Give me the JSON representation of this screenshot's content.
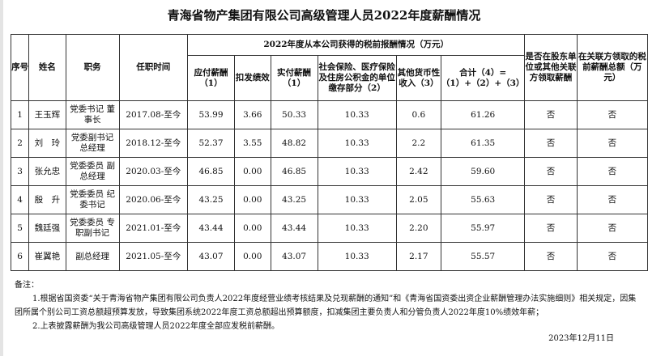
{
  "title": "青海省物产集团有限公司高级管理人员2022年度薪酬情况",
  "headers": {
    "seq": "序号",
    "name": "姓名",
    "position": "职务",
    "tenure": "任职时间",
    "group": "2022年度从本公司获得的税前报酬情况（万元）",
    "payable": "应付薪酬（1）",
    "deduct": "扣发绩效",
    "actual": "实付薪酬（1）",
    "social": "社会保险、医疗保险及住房公积金的单位缴存部分（2）",
    "other": "其他货币性收入（3）",
    "total": "合计（4）=（1）+（2）+（3）",
    "related": "是否在股东单位或其他关联方领取薪酬",
    "related_amount": "在关联方领取的税前薪酬总额（万元）"
  },
  "rows": [
    {
      "seq": "1",
      "name": "王玉辉",
      "position": "党委书记 董事长",
      "tenure": "2017.08-至今",
      "payable": "53.99",
      "deduct": "3.66",
      "actual": "50.33",
      "social": "10.33",
      "other": "0.6",
      "total": "61.26",
      "related": "否",
      "related_amount": "否"
    },
    {
      "seq": "2",
      "name": "刘　玲",
      "position": "党委副书记 总经理",
      "tenure": "2018.12-至今",
      "payable": "52.37",
      "deduct": "3.55",
      "actual": "48.82",
      "social": "10.33",
      "other": "2.2",
      "total": "61.35",
      "related": "否",
      "related_amount": "否"
    },
    {
      "seq": "3",
      "name": "张允忠",
      "position": "党委委员 副总经理",
      "tenure": "2020.03-至今",
      "payable": "46.85",
      "deduct": "0.00",
      "actual": "46.85",
      "social": "10.33",
      "other": "2.42",
      "total": "59.60",
      "related": "否",
      "related_amount": "否"
    },
    {
      "seq": "4",
      "name": "殷　升",
      "position": "党委委员 纪委书记",
      "tenure": "2020.06-至今",
      "payable": "43.25",
      "deduct": "0.00",
      "actual": "43.25",
      "social": "10.33",
      "other": "2.05",
      "total": "55.63",
      "related": "否",
      "related_amount": "否"
    },
    {
      "seq": "5",
      "name": "魏廷强",
      "position": "党委委员 专职副书记",
      "tenure": "2021.01-至今",
      "payable": "43.44",
      "deduct": "0.00",
      "actual": "43.44",
      "social": "10.33",
      "other": "2.20",
      "total": "55.97",
      "related": "否",
      "related_amount": "否"
    },
    {
      "seq": "6",
      "name": "崔翼艳",
      "position": "副总经理",
      "tenure": "2021.05-至今",
      "payable": "43.07",
      "deduct": "0.00",
      "actual": "43.07",
      "social": "10.33",
      "other": "2.17",
      "total": "55.57",
      "related": "否",
      "related_amount": "否"
    }
  ],
  "notes": {
    "label": "备注：",
    "items": [
      "1.根据省国资委“关于青海省物产集团有限公司负责人2022年度经营业绩考核结果及兑现薪酬的通知”和《青海省国资委出资企业薪酬管理办法实施细则》相关规定，因集团所属个别公司工资总额超预算发放，导致集团系统2022年度工资总额超出预算额度，扣减集团主要负责人和分管负责人2022年度10%绩效年薪；",
      "2.上表披露薪酬为我公司高级管理人员2022年度全部应发税前薪酬。"
    ]
  },
  "date": "2023年12月11日"
}
